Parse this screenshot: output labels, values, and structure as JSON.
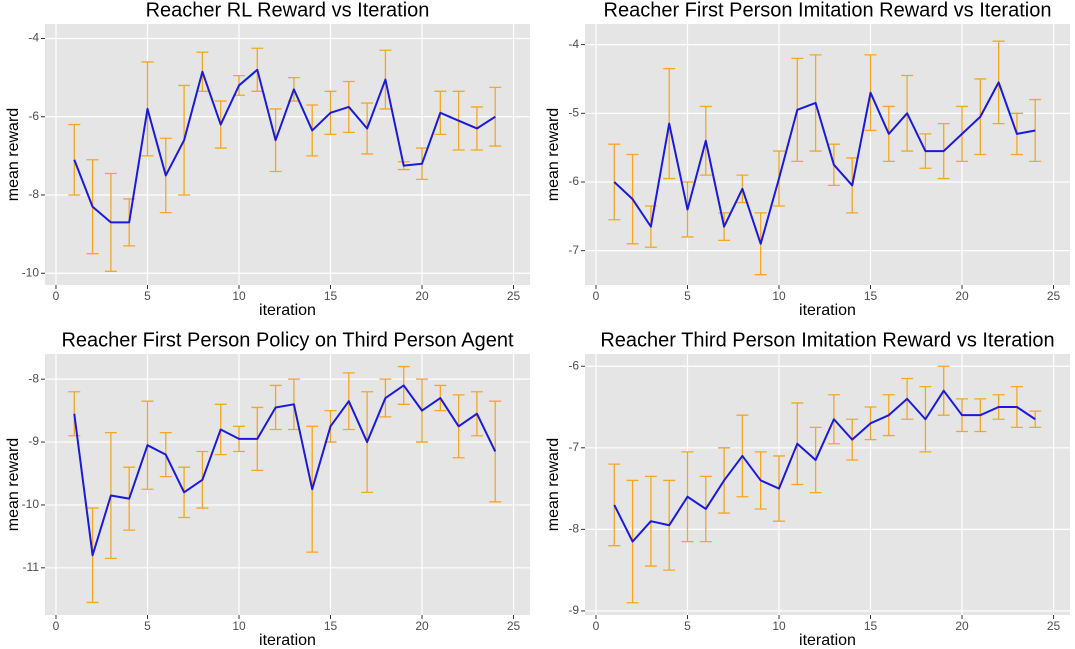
{
  "chart_data": [
    {
      "type": "line",
      "title": "Reacher RL Reward vs Iteration",
      "x_label": "iteration",
      "y_label": "mean reward",
      "x": [
        1,
        2,
        3,
        4,
        5,
        6,
        7,
        8,
        9,
        10,
        11,
        12,
        13,
        14,
        15,
        16,
        17,
        18,
        19,
        20,
        21,
        22,
        23,
        24
      ],
      "series": [
        {
          "color": "#1a1adb",
          "error_color": "#f5a623",
          "values": [
            -7.1,
            -8.3,
            -8.7,
            -8.7,
            -5.8,
            -7.5,
            -6.6,
            -4.85,
            -6.2,
            -5.2,
            -4.8,
            -6.6,
            -5.3,
            -6.35,
            -5.9,
            -5.75,
            -6.3,
            -5.05,
            -7.25,
            -7.2,
            -5.9,
            -6.1,
            -6.3,
            -6.0
          ],
          "errors": [
            0.9,
            1.2,
            1.25,
            0.6,
            1.2,
            0.95,
            1.4,
            0.5,
            0.6,
            0.25,
            0.55,
            0.8,
            0.3,
            0.65,
            0.55,
            0.65,
            0.65,
            0.75,
            0.1,
            0.4,
            0.55,
            0.75,
            0.55,
            0.75
          ]
        }
      ],
      "xlim": [
        -0.6,
        25.9
      ],
      "xticks": [
        0,
        5,
        10,
        15,
        20,
        25
      ],
      "ylim": [
        -10.3,
        -3.63
      ],
      "yticks": [
        -10,
        -8,
        -6,
        -4
      ],
      "grid": true
    },
    {
      "type": "line",
      "title": "Reacher First Person Imitation Reward vs Iteration",
      "x_label": "iteration",
      "y_label": "mean reward",
      "x": [
        1,
        2,
        3,
        4,
        5,
        6,
        7,
        8,
        9,
        10,
        11,
        12,
        13,
        14,
        15,
        16,
        17,
        18,
        19,
        20,
        21,
        22,
        23,
        24
      ],
      "series": [
        {
          "color": "#1a1adb",
          "error_color": "#f5a623",
          "values": [
            -6.0,
            -6.25,
            -6.65,
            -5.15,
            -6.4,
            -5.4,
            -6.65,
            -6.1,
            -6.9,
            -5.95,
            -4.95,
            -4.85,
            -5.75,
            -6.05,
            -4.7,
            -5.3,
            -5.0,
            -5.55,
            -5.55,
            -5.3,
            -5.05,
            -4.55,
            -5.3,
            -5.25
          ],
          "errors": [
            0.55,
            0.65,
            0.3,
            0.8,
            0.4,
            0.5,
            0.2,
            0.2,
            0.45,
            0.4,
            0.75,
            0.7,
            0.3,
            0.4,
            0.55,
            0.4,
            0.55,
            0.25,
            0.4,
            0.4,
            0.55,
            0.6,
            0.3,
            0.45
          ]
        }
      ],
      "xlim": [
        -0.6,
        25.9
      ],
      "xticks": [
        0,
        5,
        10,
        15,
        20,
        25
      ],
      "ylim": [
        -7.5,
        -3.7
      ],
      "yticks": [
        -7,
        -6,
        -5,
        -4
      ],
      "grid": true
    },
    {
      "type": "line",
      "title": "Reacher First Person Policy on Third Person Agent",
      "x_label": "iteration",
      "y_label": "mean reward",
      "x": [
        1,
        2,
        3,
        4,
        5,
        6,
        7,
        8,
        9,
        10,
        11,
        12,
        13,
        14,
        15,
        16,
        17,
        18,
        19,
        20,
        21,
        22,
        23,
        24
      ],
      "series": [
        {
          "color": "#1a1adb",
          "error_color": "#f5a623",
          "values": [
            -8.55,
            -10.8,
            -9.85,
            -9.9,
            -9.05,
            -9.2,
            -9.8,
            -9.6,
            -8.8,
            -8.95,
            -8.95,
            -8.45,
            -8.4,
            -9.75,
            -8.75,
            -8.35,
            -9.0,
            -8.3,
            -8.1,
            -8.5,
            -8.3,
            -8.75,
            -8.55,
            -9.15
          ],
          "errors": [
            0.35,
            0.75,
            1.0,
            0.5,
            0.7,
            0.35,
            0.4,
            0.45,
            0.4,
            0.2,
            0.5,
            0.35,
            0.4,
            1.0,
            0.25,
            0.45,
            0.8,
            0.3,
            0.3,
            0.5,
            0.2,
            0.5,
            0.35,
            0.8
          ]
        }
      ],
      "xlim": [
        -0.6,
        25.9
      ],
      "xticks": [
        0,
        5,
        10,
        15,
        20,
        25
      ],
      "ylim": [
        -11.75,
        -7.6
      ],
      "yticks": [
        -11,
        -10,
        -9,
        -8
      ],
      "grid": true
    },
    {
      "type": "line",
      "title": "Reacher Third Person Imitation Reward vs Iteration",
      "x_label": "iteration",
      "y_label": "mean reward",
      "x": [
        1,
        2,
        3,
        4,
        5,
        6,
        7,
        8,
        9,
        10,
        11,
        12,
        13,
        14,
        15,
        16,
        17,
        18,
        19,
        20,
        21,
        22,
        23,
        24
      ],
      "series": [
        {
          "color": "#1a1adb",
          "error_color": "#f5a623",
          "values": [
            -7.7,
            -8.15,
            -7.9,
            -7.95,
            -7.6,
            -7.75,
            -7.4,
            -7.1,
            -7.4,
            -7.5,
            -6.95,
            -7.15,
            -6.65,
            -6.9,
            -6.7,
            -6.6,
            -6.4,
            -6.65,
            -6.3,
            -6.6,
            -6.6,
            -6.5,
            -6.5,
            -6.65
          ],
          "errors": [
            0.5,
            0.75,
            0.55,
            0.55,
            0.55,
            0.4,
            0.4,
            0.5,
            0.35,
            0.4,
            0.5,
            0.4,
            0.3,
            0.25,
            0.2,
            0.25,
            0.25,
            0.4,
            0.3,
            0.2,
            0.2,
            0.15,
            0.25,
            0.1
          ]
        }
      ],
      "xlim": [
        -0.6,
        25.9
      ],
      "xticks": [
        0,
        5,
        10,
        15,
        20,
        25
      ],
      "ylim": [
        -9.05,
        -5.85
      ],
      "yticks": [
        -9,
        -8,
        -7,
        -6
      ],
      "grid": true
    }
  ]
}
